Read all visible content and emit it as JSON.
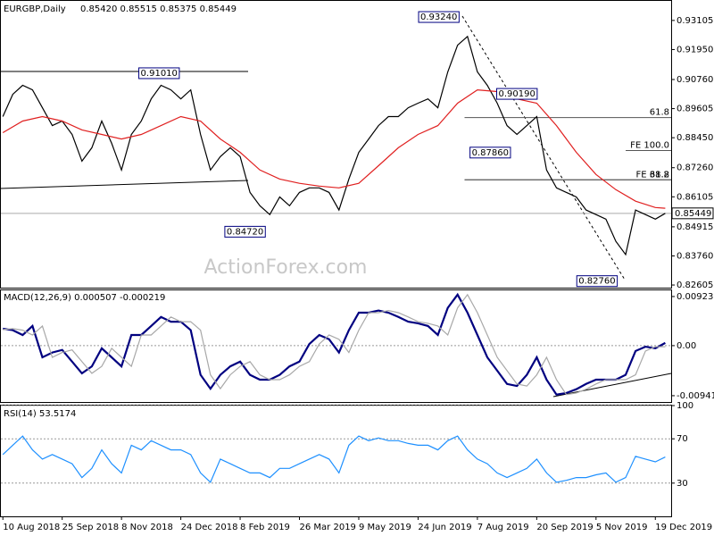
{
  "chart_data": [
    {
      "type": "line",
      "title": "EURGBP,Daily",
      "subtitle": "0.85420 0.85515 0.85375 0.85449",
      "watermark": "ActionForex.com",
      "x": [
        0,
        1,
        2,
        3,
        4,
        5,
        6,
        7,
        8,
        9,
        10,
        11,
        12,
        13,
        14,
        15,
        16,
        17,
        18,
        19,
        20,
        21,
        22,
        23,
        24,
        25,
        26,
        27,
        28,
        29,
        30,
        31,
        32,
        33,
        34,
        35,
        36,
        37,
        38,
        39,
        40,
        41,
        42,
        43,
        44,
        45,
        46,
        47,
        48,
        49,
        50,
        51,
        52,
        53,
        54,
        55,
        56,
        57,
        58,
        59,
        60,
        61,
        62,
        63,
        64,
        65,
        66,
        67
      ],
      "xlim": [
        -0.2,
        67.6
      ],
      "ylim": [
        0.825,
        0.9388
      ],
      "yticks": [
        0.93105,
        {
          "value": 0.9195,
          "label": "0.91950"
        },
        {
          "value": 0.9076,
          "label": "0.90760"
        },
        0.89605,
        {
          "value": 0.8845,
          "label": "0.88450"
        },
        {
          "value": 0.8726,
          "label": "0.87260"
        },
        0.86105,
        0.84915,
        {
          "value": 0.8376,
          "label": "0.83760"
        },
        0.82605
      ],
      "series": [
        {
          "name": "EURGBP",
          "color": "#000000",
          "values": [
            0.8929,
            0.9017,
            0.9053,
            0.9035,
            0.8964,
            0.8893,
            0.8911,
            0.8858,
            0.8752,
            0.8805,
            0.8911,
            0.8823,
            0.8717,
            0.8858,
            0.8911,
            0.8999,
            0.9053,
            0.9035,
            0.8999,
            0.9035,
            0.8858,
            0.8717,
            0.877,
            0.8805,
            0.877,
            0.8628,
            0.8575,
            0.854,
            0.861,
            0.8575,
            0.8628,
            0.8646,
            0.8646,
            0.8628,
            0.8558,
            0.8681,
            0.8787,
            0.884,
            0.8893,
            0.8929,
            0.8929,
            0.8964,
            0.8982,
            0.8999,
            0.8964,
            0.9106,
            0.9212,
            0.9247,
            0.9106,
            0.9053,
            0.8982,
            0.8893,
            0.8858,
            0.8893,
            0.8929,
            0.8717,
            0.8646,
            0.8628,
            0.861,
            0.8558,
            0.854,
            0.8522,
            0.8434,
            0.8381,
            0.8558,
            0.854,
            0.8522,
            0.85449
          ]
        },
        {
          "name": "MA",
          "color": "#e02020",
          "x": [
            0,
            2,
            4,
            6,
            8,
            10,
            12,
            14,
            16,
            18,
            20,
            22,
            24,
            26,
            28,
            30,
            32,
            34,
            36,
            38,
            40,
            42,
            44,
            46,
            48,
            50,
            52,
            54,
            56,
            58,
            60,
            62,
            64,
            66,
            67
          ],
          "values": [
            0.8865,
            0.8911,
            0.8929,
            0.8911,
            0.8876,
            0.8858,
            0.884,
            0.8858,
            0.8893,
            0.8929,
            0.8911,
            0.884,
            0.8787,
            0.8717,
            0.8681,
            0.8664,
            0.8653,
            0.8646,
            0.8664,
            0.8734,
            0.8805,
            0.8858,
            0.8893,
            0.8982,
            0.9035,
            0.9028,
            0.8999,
            0.8982,
            0.8893,
            0.8787,
            0.8699,
            0.8639,
            0.8593,
            0.8568,
            0.8565
          ]
        }
      ],
      "last_price": {
        "value": 0.85449,
        "label": "0.85449"
      },
      "annotations": [
        {
          "label": "0.93240",
          "value": 0.9324,
          "x": 44.1
        },
        {
          "label": "0.91010",
          "value": 0.9101,
          "x": 15.8
        },
        {
          "label": "0.90190",
          "value": 0.9019,
          "x": 52
        },
        {
          "label": "0.87860",
          "value": 0.8786,
          "x": 49.3
        },
        {
          "label": "0.84720",
          "value": 0.8472,
          "x": 24.5
        },
        {
          "label": "0.82760",
          "value": 0.8276,
          "x": 60.1
        }
      ],
      "levels": [
        {
          "label": "61.8",
          "value": 0.8925,
          "x": 46.7
        },
        {
          "label": "FE 100.0",
          "value": 0.8794,
          "x": 63
        },
        {
          "label": "FE 61.8",
          "value": 0.8678,
          "x": 46.7
        },
        {
          "label": "38.2",
          "value": 0.8678,
          "x": 46.7
        }
      ]
    },
    {
      "type": "line",
      "title": "MACD(12,26,9) 0.000507 -0.000219",
      "x": [
        0,
        1,
        2,
        3,
        4,
        5,
        6,
        7,
        8,
        9,
        10,
        11,
        12,
        13,
        14,
        15,
        16,
        17,
        18,
        19,
        20,
        21,
        22,
        23,
        24,
        25,
        26,
        27,
        28,
        29,
        30,
        31,
        32,
        33,
        34,
        35,
        36,
        37,
        38,
        39,
        40,
        41,
        42,
        43,
        44,
        45,
        46,
        47,
        48,
        49,
        50,
        51,
        52,
        53,
        54,
        55,
        56,
        57,
        58,
        59,
        60,
        61,
        62,
        63,
        64,
        65,
        66,
        67
      ],
      "xlim": [
        -0.2,
        67.6
      ],
      "ylim": [
        -0.0106,
        0.0104
      ],
      "yticks": [
        0.009237,
        {
          "value": 0,
          "label": "0.00"
        },
        -0.009413
      ],
      "series": [
        {
          "name": "MACD",
          "color": "#000080",
          "values": [
            0.0032,
            0.0029,
            0.002,
            0.0037,
            -0.0022,
            -0.0013,
            -0.0008,
            -0.003,
            -0.0052,
            -0.0039,
            -0.0005,
            -0.0022,
            -0.0039,
            0.002,
            0.002,
            0.0037,
            0.0054,
            0.0045,
            0.0045,
            0.0029,
            -0.0055,
            -0.0081,
            -0.0055,
            -0.0039,
            -0.003,
            -0.0055,
            -0.0064,
            -0.0064,
            -0.0055,
            -0.0039,
            -0.003,
            0.0003,
            0.002,
            0.0012,
            -0.0013,
            0.0029,
            0.0062,
            0.0062,
            0.0066,
            0.0062,
            0.0054,
            0.0045,
            0.0042,
            0.0037,
            0.002,
            0.0071,
            0.0096,
            0.0062,
            0.002,
            -0.0022,
            -0.0047,
            -0.0072,
            -0.0076,
            -0.0055,
            -0.0022,
            -0.0064,
            -0.0092,
            -0.0089,
            -0.0082,
            -0.0072,
            -0.0064,
            -0.0064,
            -0.0064,
            -0.0055,
            -0.001,
            -0.0002,
            -0.0005,
            0.000507
          ]
        },
        {
          "name": "Signal",
          "color": "#a8a8a8",
          "values": [
            0.003,
            0.0032,
            0.0029,
            0.002,
            0.0037,
            -0.0022,
            -0.0013,
            -0.0008,
            -0.003,
            -0.0052,
            -0.0039,
            -0.0005,
            -0.0022,
            -0.0039,
            0.002,
            0.002,
            0.0037,
            0.0054,
            0.0045,
            0.0045,
            0.0029,
            -0.0055,
            -0.0081,
            -0.0055,
            -0.0039,
            -0.003,
            -0.0055,
            -0.0064,
            -0.0064,
            -0.0055,
            -0.0039,
            -0.003,
            0.0003,
            0.002,
            0.0012,
            -0.0013,
            0.0029,
            0.0062,
            0.0062,
            0.0066,
            0.0062,
            0.0054,
            0.0045,
            0.0042,
            0.0037,
            0.002,
            0.0071,
            0.0096,
            0.0062,
            0.002,
            -0.0022,
            -0.0047,
            -0.0072,
            -0.0076,
            -0.0055,
            -0.0022,
            -0.0064,
            -0.0092,
            -0.0089,
            -0.0082,
            -0.0072,
            -0.0064,
            -0.0064,
            -0.0064,
            -0.0055,
            -0.001,
            -0.0002,
            -0.000219
          ]
        }
      ]
    },
    {
      "type": "line",
      "title": "RSI(14) 53.5174",
      "x": [
        0,
        1,
        2,
        3,
        4,
        5,
        6,
        7,
        8,
        9,
        10,
        11,
        12,
        13,
        14,
        15,
        16,
        17,
        18,
        19,
        20,
        21,
        22,
        23,
        24,
        25,
        26,
        27,
        28,
        29,
        30,
        31,
        32,
        33,
        34,
        35,
        36,
        37,
        38,
        39,
        40,
        41,
        42,
        43,
        44,
        45,
        46,
        47,
        48,
        49,
        50,
        51,
        52,
        53,
        54,
        55,
        56,
        57,
        58,
        59,
        60,
        61,
        62,
        63,
        64,
        65,
        66,
        67
      ],
      "xlim": [
        -0.2,
        67.6
      ],
      "ylim": [
        0,
        100
      ],
      "yticks": [
        100,
        70,
        30
      ],
      "grid": true,
      "xticks": [
        {
          "value": 0,
          "label": "10 Aug 2018"
        },
        {
          "value": 6,
          "label": "25 Sep 2018"
        },
        {
          "value": 12,
          "label": "8 Nov 2018"
        },
        {
          "value": 18,
          "label": "24 Dec 2018"
        },
        {
          "value": 24,
          "label": "8 Feb 2019"
        },
        {
          "value": 30,
          "label": "26 Mar 2019"
        },
        {
          "value": 36,
          "label": "9 May 2019"
        },
        {
          "value": 42,
          "label": "24 Jun 2019"
        },
        {
          "value": 48,
          "label": "7 Aug 2019"
        },
        {
          "value": 54,
          "label": "20 Sep 2019"
        },
        {
          "value": 60,
          "label": "5 Nov 2019"
        },
        {
          "value": 66,
          "label": "19 Dec 2019"
        }
      ],
      "series": [
        {
          "name": "RSI",
          "color": "#1e90ff",
          "values": [
            55.8,
            64.2,
            72.5,
            60,
            51.7,
            55.8,
            51.7,
            47.5,
            35,
            43.3,
            60,
            47.5,
            39.2,
            64.2,
            60,
            68.3,
            64.2,
            60,
            60,
            55.8,
            39.2,
            30.8,
            51.7,
            47.5,
            43.3,
            39.2,
            39.2,
            35,
            43.3,
            43.3,
            47.5,
            51.7,
            55.8,
            51.7,
            39.2,
            64.2,
            72.5,
            68.3,
            70.8,
            68.3,
            68.3,
            65.8,
            64.2,
            64.2,
            60,
            68.3,
            72.5,
            60,
            51.7,
            47.5,
            39.2,
            35,
            39.2,
            43.3,
            51.7,
            39.2,
            30.8,
            32.5,
            35,
            35,
            37.5,
            39.2,
            30.8,
            35,
            54.2,
            51.7,
            49.2,
            53.5174
          ]
        }
      ]
    }
  ]
}
